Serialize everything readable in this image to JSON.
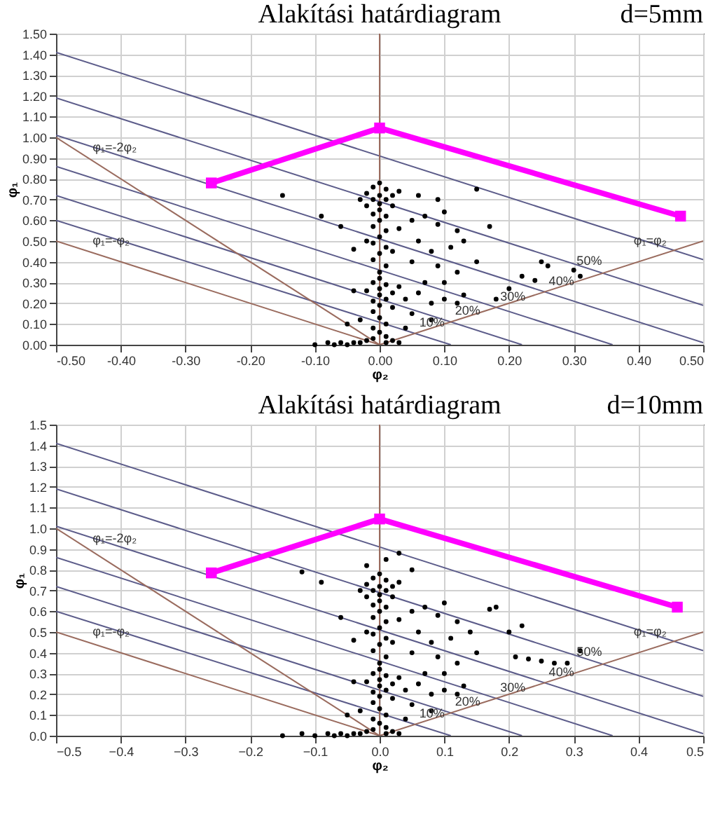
{
  "chart_data": [
    {
      "type": "scatter",
      "title": "Alakítási határdiagram",
      "xlabel": "φ₂",
      "ylabel": "φ₁",
      "grid": true,
      "annotations": [
        "d=5mm",
        {
          "text": "φ₁=-2φ₂",
          "x": -0.45,
          "y": 0.9
        },
        {
          "text": "φ₁=-φ₂",
          "x": -0.45,
          "y": 0.45
        },
        {
          "text": "φ₁=φ₂",
          "x": 0.45,
          "y": 0.45
        },
        {
          "text": "10%",
          "x": 0.055,
          "y": 0.055
        },
        {
          "text": "20%",
          "x": 0.11,
          "y": 0.11
        },
        {
          "text": "30%",
          "x": 0.18,
          "y": 0.18
        },
        {
          "text": "40%",
          "x": 0.255,
          "y": 0.255
        },
        {
          "text": "50%",
          "x": 0.35,
          "y": 0.35
        }
      ],
      "xlim": [
        -0.5,
        0.5
      ],
      "ylim": [
        0,
        1.5
      ],
      "xticks": [
        {
          "value": -0.5,
          "label": "-0.50"
        },
        {
          "value": -0.4,
          "label": "-0.40"
        },
        {
          "value": -0.3,
          "label": "-0.30"
        },
        {
          "value": -0.2,
          "label": "-0.20"
        },
        {
          "value": -0.1,
          "label": "-0.10"
        },
        {
          "value": 0,
          "label": "0.00"
        },
        {
          "value": 0.1,
          "label": "0.10"
        },
        {
          "value": 0.2,
          "label": "0.20"
        },
        {
          "value": 0.3,
          "label": "0.30"
        },
        {
          "value": 0.4,
          "label": "0.40"
        },
        {
          "value": 0.5,
          "label": "0.50"
        }
      ],
      "yticks": [
        {
          "value": 0,
          "label": "0.00"
        },
        {
          "value": 0.1,
          "label": "0.10"
        },
        {
          "value": 0.2,
          "label": "0.20"
        },
        {
          "value": 0.3,
          "label": "0.30"
        },
        {
          "value": 0.4,
          "label": "0.40"
        },
        {
          "value": 0.5,
          "label": "0.50"
        },
        {
          "value": 0.6,
          "label": "0.60"
        },
        {
          "value": 0.7,
          "label": "0.70"
        },
        {
          "value": 0.8,
          "label": "0.80"
        },
        {
          "value": 0.9,
          "label": "0.90"
        },
        {
          "value": 1,
          "label": "1.00"
        },
        {
          "value": 1.1,
          "label": "1.10"
        },
        {
          "value": 1.2,
          "label": "1.20"
        },
        {
          "value": 1.3,
          "label": "1.30"
        },
        {
          "value": 1.4,
          "label": "1.40"
        },
        {
          "value": 1.5,
          "label": "1.50"
        }
      ],
      "series": [
        {
          "type": "line",
          "color": "#5c5c8a",
          "x": [
            -0.5,
            0.11
          ],
          "values": [
            0.6,
            0
          ]
        },
        {
          "type": "line",
          "color": "#5c5c8a",
          "x": [
            -0.5,
            0.22
          ],
          "values": [
            0.72,
            0
          ]
        },
        {
          "type": "line",
          "color": "#5c5c8a",
          "x": [
            -0.5,
            0.36
          ],
          "values": [
            0.86,
            0
          ]
        },
        {
          "type": "line",
          "color": "#5c5c8a",
          "x": [
            -0.5,
            0.5
          ],
          "values": [
            1.01,
            0.01
          ]
        },
        {
          "type": "line",
          "color": "#5c5c8a",
          "x": [
            -0.5,
            0.5
          ],
          "values": [
            1.19,
            0.19
          ]
        },
        {
          "type": "line",
          "color": "#5c5c8a",
          "x": [
            -0.5,
            0.5
          ],
          "values": [
            1.41,
            0.41
          ]
        },
        {
          "type": "line",
          "color": "#9a6b5e",
          "x": [
            -0.5,
            0
          ],
          "values": [
            1.0,
            0
          ]
        },
        {
          "type": "line",
          "color": "#9a6b5e",
          "x": [
            -0.5,
            0
          ],
          "values": [
            0.5,
            0
          ]
        },
        {
          "type": "line",
          "color": "#9a6b5e",
          "x": [
            0,
            0.5
          ],
          "values": [
            0,
            0.5
          ]
        },
        {
          "type": "line",
          "color": "#9a6b5e",
          "x": [
            0,
            0
          ],
          "values": [
            0,
            1.5
          ]
        },
        {
          "color": "#000000",
          "marker": "circle",
          "x": [
            0,
            -0.01,
            0.01,
            -0.02,
            0,
            0.02,
            -0.01,
            0.01,
            0,
            -0.02,
            0.02,
            0,
            -0.01,
            0.01,
            0.03,
            -0.03,
            0,
            -0.01,
            0.01,
            0,
            -0.01,
            0.01,
            0,
            -0.01,
            0.01,
            0,
            0.02,
            -0.02,
            0.03,
            0,
            -0.01,
            0.01,
            0,
            -0.02,
            0.02,
            0,
            0.01,
            -0.01,
            0,
            0.02,
            -0.01,
            0.03,
            0.04,
            0,
            0.01,
            -0.01,
            0,
            0.01,
            -0.01,
            -0.1,
            -0.08,
            -0.07,
            -0.06,
            -0.05,
            -0.04,
            -0.03,
            -0.02,
            0.01,
            0.02,
            0.03,
            0.05,
            0.07,
            0.09,
            0.1,
            0.12,
            0.06,
            0.08,
            0.11,
            0.13,
            0.05,
            0.09,
            0.1,
            0.12,
            0.07,
            0.06,
            0.08,
            0.1,
            0.12,
            0.13,
            0.05,
            0.08,
            0.04,
            0.15,
            0.17,
            0.15,
            0.06,
            0.09,
            0.22,
            0.24,
            0.25,
            0.26,
            0.3,
            0.31,
            0.2,
            0.18,
            -0.15,
            -0.09,
            -0.06,
            -0.04,
            -0.04,
            -0.03,
            -0.05
          ],
          "values": [
            0.78,
            0.76,
            0.75,
            0.73,
            0.72,
            0.72,
            0.7,
            0.7,
            0.68,
            0.67,
            0.67,
            0.65,
            0.63,
            0.62,
            0.74,
            0.7,
            0.6,
            0.57,
            0.55,
            0.52,
            0.49,
            0.47,
            0.44,
            0.41,
            0.38,
            0.35,
            0.45,
            0.5,
            0.56,
            0.32,
            0.3,
            0.29,
            0.27,
            0.26,
            0.25,
            0.24,
            0.22,
            0.21,
            0.19,
            0.18,
            0.16,
            0.28,
            0.22,
            0.13,
            0.1,
            0.08,
            0.06,
            0.04,
            0.03,
            0,
            0.01,
            0,
            0.01,
            0,
            0.01,
            0.01,
            0.02,
            0.01,
            0.02,
            0.01,
            0.6,
            0.62,
            0.58,
            0.64,
            0.55,
            0.5,
            0.45,
            0.47,
            0.5,
            0.4,
            0.38,
            0.3,
            0.35,
            0.3,
            0.25,
            0.2,
            0.22,
            0.2,
            0.24,
            0.15,
            0.12,
            0.08,
            0.4,
            0.57,
            0.75,
            0.72,
            0.7,
            0.33,
            0.31,
            0.4,
            0.38,
            0.36,
            0.33,
            0.27,
            0.22,
            0.72,
            0.62,
            0.57,
            0.46,
            0.26,
            0.12,
            0.1
          ]
        },
        {
          "type": "line",
          "color": "#ff00ff",
          "marker": "square",
          "x": [
            -0.26,
            0,
            0.465
          ],
          "values": [
            0.78,
            1.045,
            0.62
          ]
        }
      ]
    },
    {
      "type": "scatter",
      "title": "Alakítási határdiagram",
      "xlabel": "φ₂",
      "ylabel": "φ₁",
      "grid": true,
      "annotations": [
        "d=10mm",
        {
          "text": "φ₁=-2φ₂",
          "x": -0.45,
          "y": 0.9
        },
        {
          "text": "φ₁=-φ₂",
          "x": -0.45,
          "y": 0.45
        },
        {
          "text": "φ₁=φ₂",
          "x": 0.45,
          "y": 0.45
        },
        {
          "text": "10%",
          "x": 0.055,
          "y": 0.055
        },
        {
          "text": "20%",
          "x": 0.11,
          "y": 0.11
        },
        {
          "text": "30%",
          "x": 0.18,
          "y": 0.18
        },
        {
          "text": "40%",
          "x": 0.255,
          "y": 0.255
        },
        {
          "text": "50%",
          "x": 0.35,
          "y": 0.35
        }
      ],
      "xlim": [
        -0.5,
        0.5
      ],
      "ylim": [
        0,
        1.5
      ],
      "xticks": [
        -0.5,
        -0.4,
        -0.3,
        -0.2,
        -0.1,
        {
          "value": 0,
          "label": "0.0"
        },
        0.1,
        0.2,
        0.3,
        0.4,
        0.5
      ],
      "yticks": [
        {
          "value": 0,
          "label": "0.0"
        },
        0.1,
        0.2,
        0.3,
        0.4,
        0.5,
        0.6,
        0.7,
        0.8,
        0.9,
        {
          "value": 1,
          "label": "1.0"
        },
        1.1,
        1.2,
        1.3,
        1.4,
        1.5
      ],
      "series": [
        {
          "type": "line",
          "color": "#5c5c8a",
          "x": [
            -0.5,
            0.11
          ],
          "values": [
            0.6,
            0
          ]
        },
        {
          "type": "line",
          "color": "#5c5c8a",
          "x": [
            -0.5,
            0.22
          ],
          "values": [
            0.72,
            0
          ]
        },
        {
          "type": "line",
          "color": "#5c5c8a",
          "x": [
            -0.5,
            0.36
          ],
          "values": [
            0.86,
            0
          ]
        },
        {
          "type": "line",
          "color": "#5c5c8a",
          "x": [
            -0.5,
            0.5
          ],
          "values": [
            1.01,
            0.01
          ]
        },
        {
          "type": "line",
          "color": "#5c5c8a",
          "x": [
            -0.5,
            0.5
          ],
          "values": [
            1.19,
            0.19
          ]
        },
        {
          "type": "line",
          "color": "#5c5c8a",
          "x": [
            -0.5,
            0.5
          ],
          "values": [
            1.41,
            0.41
          ]
        },
        {
          "type": "line",
          "color": "#9a6b5e",
          "x": [
            -0.5,
            0
          ],
          "values": [
            1.0,
            0
          ]
        },
        {
          "type": "line",
          "color": "#9a6b5e",
          "x": [
            -0.5,
            0
          ],
          "values": [
            0.5,
            0
          ]
        },
        {
          "type": "line",
          "color": "#9a6b5e",
          "x": [
            0,
            0.5
          ],
          "values": [
            0,
            0.5
          ]
        },
        {
          "type": "line",
          "color": "#9a6b5e",
          "x": [
            0,
            0
          ],
          "values": [
            0,
            1.5
          ]
        },
        {
          "color": "#000000",
          "marker": "circle",
          "x": [
            0.01,
            -0.02,
            0.03,
            0.05,
            0,
            -0.01,
            0.01,
            -0.02,
            0,
            0.02,
            -0.01,
            0.01,
            0,
            -0.02,
            0.02,
            0,
            -0.01,
            0.01,
            0.03,
            -0.03,
            0,
            -0.01,
            0.01,
            0,
            -0.01,
            0.01,
            0,
            -0.01,
            0.01,
            0,
            0.02,
            -0.02,
            0.03,
            0,
            -0.01,
            0.01,
            0,
            -0.02,
            0.02,
            0,
            0.01,
            -0.01,
            0,
            0.02,
            -0.01,
            0.03,
            0.04,
            0,
            0.01,
            -0.01,
            0,
            0.01,
            -0.01,
            -0.15,
            -0.12,
            -0.1,
            -0.08,
            -0.07,
            -0.06,
            -0.05,
            -0.04,
            -0.03,
            -0.02,
            0.01,
            0.02,
            0.03,
            0.05,
            0.07,
            0.09,
            0.1,
            0.12,
            0.06,
            0.08,
            0.11,
            0.14,
            0.05,
            0.09,
            0.1,
            0.12,
            0.07,
            0.06,
            0.08,
            0.1,
            0.12,
            0.13,
            0.05,
            0.08,
            0.04,
            0.15,
            0.18,
            0.17,
            0.2,
            0.22,
            0.21,
            0.23,
            0.25,
            0.27,
            0.29,
            0.31,
            -0.12,
            -0.09,
            -0.06,
            -0.04,
            -0.04,
            -0.03,
            -0.05
          ],
          "values": [
            0.85,
            0.82,
            0.88,
            0.8,
            0.78,
            0.76,
            0.75,
            0.73,
            0.72,
            0.72,
            0.7,
            0.7,
            0.68,
            0.67,
            0.67,
            0.65,
            0.63,
            0.62,
            0.74,
            0.7,
            0.6,
            0.57,
            0.55,
            0.52,
            0.49,
            0.47,
            0.44,
            0.41,
            0.38,
            0.35,
            0.45,
            0.5,
            0.56,
            0.32,
            0.3,
            0.29,
            0.27,
            0.26,
            0.25,
            0.24,
            0.22,
            0.21,
            0.19,
            0.18,
            0.16,
            0.28,
            0.22,
            0.13,
            0.1,
            0.08,
            0.06,
            0.04,
            0.03,
            0,
            0.01,
            0,
            0.01,
            0,
            0.01,
            0,
            0.01,
            0.01,
            0.02,
            0.01,
            0.02,
            0.01,
            0.6,
            0.62,
            0.58,
            0.64,
            0.55,
            0.5,
            0.45,
            0.47,
            0.5,
            0.4,
            0.38,
            0.3,
            0.35,
            0.3,
            0.25,
            0.2,
            0.22,
            0.2,
            0.24,
            0.15,
            0.12,
            0.08,
            0.4,
            0.62,
            0.61,
            0.5,
            0.53,
            0.38,
            0.37,
            0.36,
            0.35,
            0.35,
            0.41,
            0.79,
            0.74,
            0.57,
            0.46,
            0.26,
            0.12,
            0.1
          ]
        },
        {
          "type": "line",
          "color": "#ff00ff",
          "marker": "square",
          "x": [
            -0.26,
            0,
            0.46
          ],
          "values": [
            0.785,
            1.045,
            0.62
          ]
        }
      ]
    }
  ]
}
